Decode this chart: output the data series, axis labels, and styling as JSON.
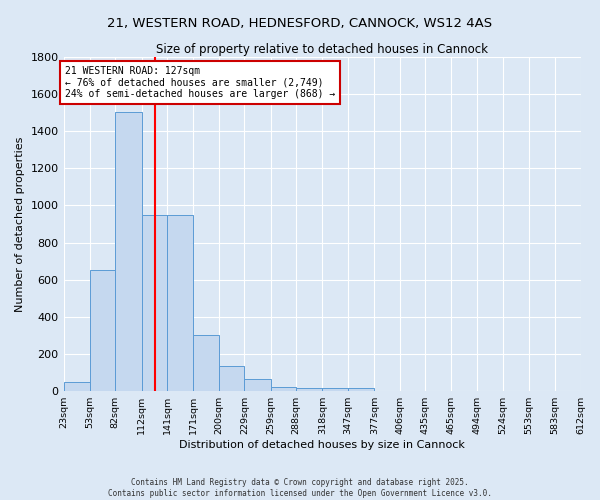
{
  "title1": "21, WESTERN ROAD, HEDNESFORD, CANNOCK, WS12 4AS",
  "title2": "Size of property relative to detached houses in Cannock",
  "xlabel": "Distribution of detached houses by size in Cannock",
  "ylabel": "Number of detached properties",
  "bin_labels": [
    "23sqm",
    "53sqm",
    "82sqm",
    "112sqm",
    "141sqm",
    "171sqm",
    "200sqm",
    "229sqm",
    "259sqm",
    "288sqm",
    "318sqm",
    "347sqm",
    "377sqm",
    "406sqm",
    "435sqm",
    "465sqm",
    "494sqm",
    "524sqm",
    "553sqm",
    "583sqm",
    "612sqm"
  ],
  "bin_edges": [
    23,
    53,
    82,
    112,
    141,
    171,
    200,
    229,
    259,
    288,
    318,
    347,
    377,
    406,
    435,
    465,
    494,
    524,
    553,
    583,
    612
  ],
  "bar_heights": [
    50,
    650,
    1500,
    950,
    950,
    300,
    135,
    65,
    25,
    15,
    15,
    15,
    0,
    0,
    0,
    0,
    0,
    0,
    0,
    0
  ],
  "bar_color": "#c5d8ef",
  "bar_edge_color": "#5b9bd5",
  "red_line_x": 127,
  "annotation_text": "21 WESTERN ROAD: 127sqm\n← 76% of detached houses are smaller (2,749)\n24% of semi-detached houses are larger (868) →",
  "annotation_box_color": "#ffffff",
  "annotation_box_edge": "#cc0000",
  "ylim": [
    0,
    1800
  ],
  "yticks": [
    0,
    200,
    400,
    600,
    800,
    1000,
    1200,
    1400,
    1600,
    1800
  ],
  "background_color": "#dce8f5",
  "grid_color": "#ffffff",
  "footer1": "Contains HM Land Registry data © Crown copyright and database right 2025.",
  "footer2": "Contains public sector information licensed under the Open Government Licence v3.0."
}
